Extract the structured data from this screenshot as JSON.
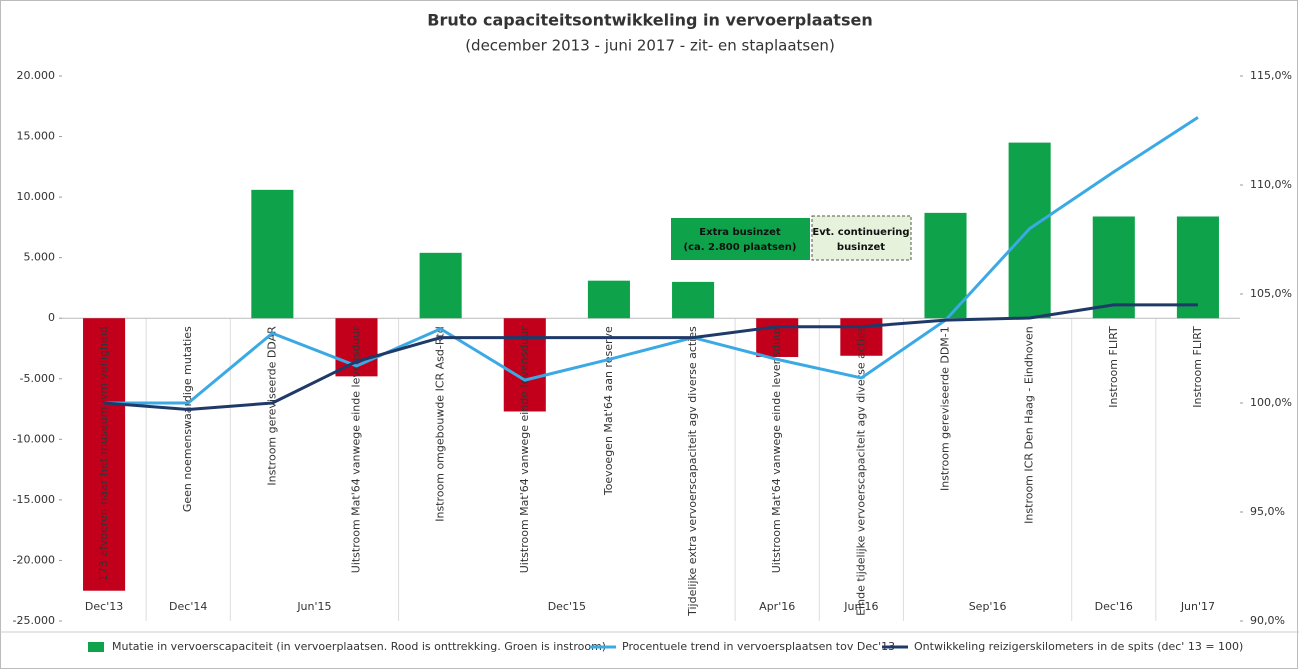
{
  "chart_data": {
    "type": "bar",
    "title": "Bruto capaciteitsontwikkeling in vervoerplaatsen",
    "subtitle": "(december 2013 - juni 2017 - zit- en staplaatsen)",
    "categories": [
      "173 afvoeren naar het museum ivm veiligheid",
      "Geen noemenswaardige mutaties",
      "Instroom gereviseerde DDAR",
      "Uitstroom Mat'64 vanwege einde levensduur",
      "Instroom omgebouwde ICR Asd-Rtd",
      "Uitstroom Mat'64 vanwege einde levensduur",
      "Toevoegen Mat'64 aan reserve",
      "Tijdelijke extra vervoerscapaciteit agv diverse acties",
      "Uitstroom Mat'64 vanwege einde levensduur",
      "Einde tijdelijke vervoerscapaciteit agv diverse acties",
      "Instroom gereviseerde DDM-1",
      "Instroom ICR Den Haag - Eindhoven",
      "Instroom FLIRT",
      "Instroom FLIRT"
    ],
    "periods": [
      {
        "label": "Dec'13",
        "count": 1
      },
      {
        "label": "Dec'14",
        "count": 1
      },
      {
        "label": "Jun'15",
        "count": 2
      },
      {
        "label": "Dec'15",
        "count": 4
      },
      {
        "label": "Apr'16",
        "count": 1
      },
      {
        "label": "Jun'16",
        "count": 1
      },
      {
        "label": "Sep'16",
        "count": 2
      },
      {
        "label": "Dec'16",
        "count": 1
      },
      {
        "label": "Jun'17",
        "count": 1
      }
    ],
    "series": [
      {
        "name": "Mutatie in vervoerscapaciteit (in vervoerplaatsen. Rood is onttrekking. Groen is instroom)",
        "type": "bar",
        "color": "#0ea24b",
        "negative_color": "#c3001c",
        "values": [
          -22500,
          0,
          10600,
          -4800,
          5400,
          -7700,
          3100,
          3000,
          -3200,
          -3100,
          8700,
          14500,
          8400,
          8400
        ]
      },
      {
        "name": "Procentuele trend in vervoersplaatsen tov Dec'13",
        "type": "line",
        "axis": "y2",
        "color": "#3aa9e4",
        "values": [
          100.0,
          100.0,
          103.2,
          101.7,
          103.4,
          101.05,
          102.0,
          103.0,
          102.0,
          101.15,
          103.8,
          108.0,
          110.6,
          113.1
        ]
      },
      {
        "name": "Ontwikkeling reizigerskilometers in de spits (dec' 13 = 100)",
        "type": "line",
        "axis": "y2",
        "color": "#1f3a68",
        "values": [
          100.0,
          99.7,
          100.0,
          101.9,
          103.0,
          103.0,
          103.0,
          103.0,
          103.5,
          103.5,
          103.8,
          103.9,
          104.5,
          104.5
        ]
      }
    ],
    "ylim": [
      -25000,
      20000
    ],
    "yticks": [
      {
        "value": -25000,
        "label": "-25.000"
      },
      {
        "value": -20000,
        "label": "-20.000"
      },
      {
        "value": -15000,
        "label": "-15.000"
      },
      {
        "value": -10000,
        "label": "-10.000"
      },
      {
        "value": -5000,
        "label": "-5.000"
      },
      0,
      {
        "value": 5000,
        "label": "5.000"
      },
      {
        "value": 10000,
        "label": "10.000"
      },
      {
        "value": 15000,
        "label": "15.000"
      },
      {
        "value": 20000,
        "label": "20.000"
      }
    ],
    "y2lim": [
      90,
      115
    ],
    "y2ticks": [
      {
        "value": 90,
        "label": "90,0%"
      },
      {
        "value": 95,
        "label": "95,0%"
      },
      {
        "value": 100,
        "label": "100,0%"
      },
      {
        "value": 105,
        "label": "105,0%"
      },
      {
        "value": 110,
        "label": "110,0%"
      },
      {
        "value": 115,
        "label": "115,0%"
      }
    ],
    "annotations": [
      {
        "lines": [
          "Extra businzet",
          "(ca. 2.800 plaatsen)"
        ]
      },
      {
        "lines": [
          "Evt. continuering",
          "businzet"
        ]
      }
    ],
    "legend": "bottom"
  }
}
